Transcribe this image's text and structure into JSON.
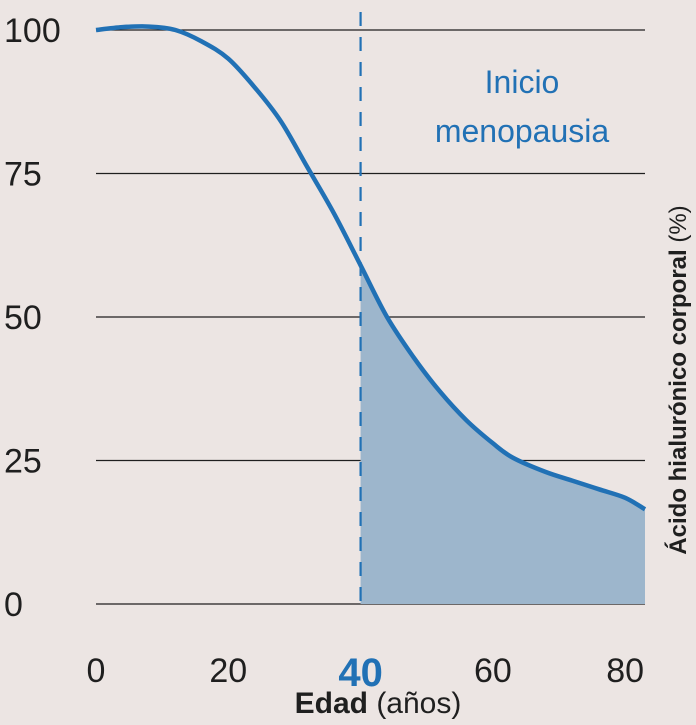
{
  "chart_data": {
    "type": "area",
    "x": [
      0,
      4,
      8,
      12,
      16,
      20,
      24,
      28,
      32,
      36,
      40,
      44,
      48,
      52,
      56,
      60,
      63,
      68,
      72,
      76,
      80,
      83
    ],
    "y": [
      100,
      100.5,
      100.6,
      100,
      98,
      95,
      90,
      84,
      76,
      68,
      59,
      50,
      43,
      37,
      32,
      28,
      25.5,
      23,
      21.5,
      20,
      18.5,
      16.5
    ],
    "xlim": [
      0,
      83
    ],
    "ylim": [
      0,
      100
    ],
    "xticks": [
      "0",
      "20",
      "40",
      "60",
      "80"
    ],
    "yticks": [
      "0",
      "25",
      "50",
      "75",
      "100"
    ],
    "highlight_tick": "40",
    "xlabel_bold": "Edad",
    "xlabel_rest": " (años)",
    "ylabel_bold": "Ácido hialurónico corporal",
    "ylabel_rest": " (%)",
    "shade_from_x": 40,
    "vline_x": 40,
    "annotation_lines": [
      "Inicio",
      "menopausia"
    ],
    "grid": true,
    "colors": {
      "line": "#2171b5",
      "fill": "#9db6cc",
      "accent": "#2171b5",
      "grid": "#1f1f1f",
      "background": "#ece5e3"
    }
  }
}
